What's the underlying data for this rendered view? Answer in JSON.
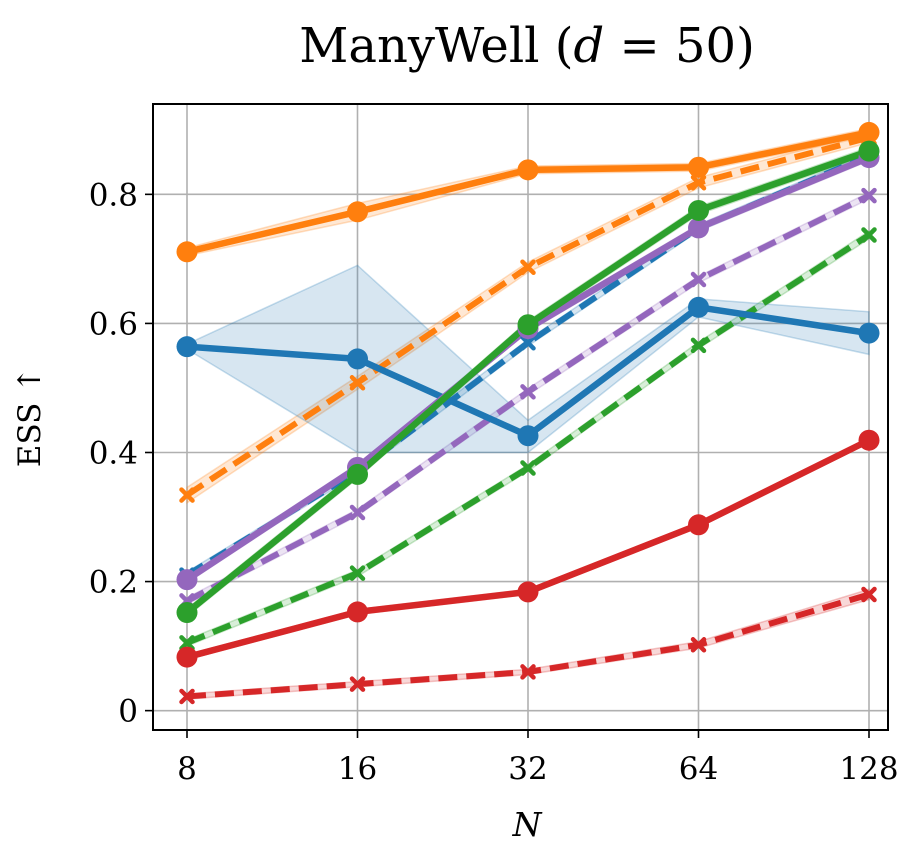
{
  "chart_data": {
    "type": "line",
    "title": {
      "prefix": "ManyWell (",
      "var": "d",
      "suffix": " = 50)"
    },
    "xlabel": "N",
    "ylabel": "ESS ↑",
    "x_scale": "log2",
    "x": [
      8,
      16,
      32,
      64,
      128
    ],
    "x_tick_labels": [
      "8",
      "16",
      "32",
      "64",
      "128"
    ],
    "ylim": [
      -0.03,
      0.94
    ],
    "y_ticks": [
      0,
      0.2,
      0.4,
      0.6,
      0.8
    ],
    "y_tick_labels": [
      "0",
      "0.2",
      "0.4",
      "0.6",
      "0.8"
    ],
    "grid": true,
    "series": [
      {
        "color": "#ff7f0e",
        "style": "dashed",
        "marker": "x",
        "values": [
          0.334,
          0.508,
          0.687,
          0.818,
          0.888
        ],
        "band": [
          [
            0.322,
            0.346
          ],
          [
            0.498,
            0.518
          ],
          [
            0.679,
            0.695
          ],
          [
            0.81,
            0.826
          ],
          [
            0.88,
            0.896
          ]
        ]
      },
      {
        "color": "#2ca02c",
        "style": "dashed",
        "marker": "x",
        "values": [
          0.105,
          0.213,
          0.376,
          0.566,
          0.737
        ],
        "band": [
          [
            0.1,
            0.11
          ],
          [
            0.208,
            0.218
          ],
          [
            0.371,
            0.381
          ],
          [
            0.561,
            0.571
          ],
          [
            0.731,
            0.743
          ]
        ]
      },
      {
        "color": "#9467bd",
        "style": "dashed",
        "marker": "x",
        "values": [
          0.17,
          0.307,
          0.494,
          0.668,
          0.798
        ],
        "band": [
          [
            0.165,
            0.175
          ],
          [
            0.302,
            0.312
          ],
          [
            0.489,
            0.499
          ],
          [
            0.663,
            0.673
          ],
          [
            0.793,
            0.803
          ]
        ]
      },
      {
        "color": "#d62728",
        "style": "dashed",
        "marker": "x",
        "values": [
          0.022,
          0.041,
          0.06,
          0.102,
          0.18
        ],
        "band": [
          [
            0.018,
            0.026
          ],
          [
            0.037,
            0.045
          ],
          [
            0.056,
            0.064
          ],
          [
            0.097,
            0.107
          ],
          [
            0.172,
            0.188
          ]
        ]
      },
      {
        "color": "#1f77b4",
        "style": "dashed",
        "marker": "x",
        "values": [
          0.21,
          0.371,
          0.57,
          0.748,
          0.86
        ],
        "band": [
          [
            0.205,
            0.215
          ],
          [
            0.366,
            0.376
          ],
          [
            0.565,
            0.575
          ],
          [
            0.743,
            0.753
          ],
          [
            0.855,
            0.865
          ]
        ]
      },
      {
        "color": "#ff7f0e",
        "style": "solid",
        "marker": "o",
        "values": [
          0.711,
          0.773,
          0.838,
          0.842,
          0.896
        ],
        "band": [
          [
            0.705,
            0.717
          ],
          [
            0.76,
            0.786
          ],
          [
            0.832,
            0.844
          ],
          [
            0.836,
            0.848
          ],
          [
            0.89,
            0.902
          ]
        ]
      },
      {
        "color": "#1f77b4",
        "style": "solid",
        "marker": "o",
        "values": [
          0.564,
          0.545,
          0.426,
          0.625,
          0.585
        ],
        "band": [
          [
            0.56,
            0.568
          ],
          [
            0.4,
            0.69
          ],
          [
            0.4,
            0.45
          ],
          [
            0.61,
            0.638
          ],
          [
            0.552,
            0.618
          ]
        ]
      },
      {
        "color": "#9467bd",
        "style": "solid",
        "marker": "o",
        "values": [
          0.203,
          0.377,
          0.592,
          0.748,
          0.857
        ],
        "band": [
          [
            0.198,
            0.208
          ],
          [
            0.372,
            0.382
          ],
          [
            0.587,
            0.597
          ],
          [
            0.743,
            0.753
          ],
          [
            0.852,
            0.862
          ]
        ]
      },
      {
        "color": "#2ca02c",
        "style": "solid",
        "marker": "o",
        "values": [
          0.152,
          0.366,
          0.598,
          0.775,
          0.867
        ],
        "band": [
          [
            0.146,
            0.158
          ],
          [
            0.36,
            0.372
          ],
          [
            0.592,
            0.604
          ],
          [
            0.769,
            0.781
          ],
          [
            0.861,
            0.873
          ]
        ]
      },
      {
        "color": "#d62728",
        "style": "solid",
        "marker": "o",
        "values": [
          0.083,
          0.153,
          0.184,
          0.288,
          0.419
        ],
        "band": [
          [
            0.079,
            0.087
          ],
          [
            0.149,
            0.157
          ],
          [
            0.18,
            0.188
          ],
          [
            0.284,
            0.292
          ],
          [
            0.415,
            0.423
          ]
        ]
      }
    ]
  }
}
